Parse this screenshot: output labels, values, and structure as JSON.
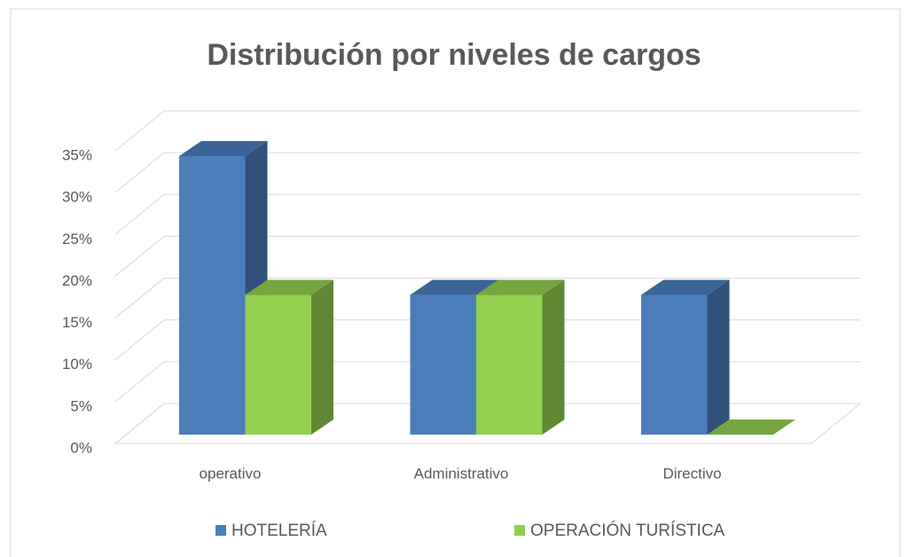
{
  "chart_data": {
    "type": "bar3d",
    "title": "Distribución por niveles de cargos",
    "categories": [
      "operativo",
      "Administrativo",
      "Directivo"
    ],
    "series": [
      {
        "name": "HOTELERÍA",
        "color": "#4a7ebb",
        "values": [
          33.3,
          16.7,
          16.7
        ]
      },
      {
        "name": "OPERACIÓN TURÍSTICA",
        "color": "#92d050",
        "values": [
          16.7,
          16.7,
          0
        ]
      }
    ],
    "ylim": [
      0,
      35
    ],
    "yticks": [
      {
        "value": 0,
        "label": "0%"
      },
      {
        "value": 5,
        "label": "5%"
      },
      {
        "value": 10,
        "label": "10%"
      },
      {
        "value": 15,
        "label": "15%"
      },
      {
        "value": 20,
        "label": "20%"
      },
      {
        "value": 25,
        "label": "25%"
      },
      {
        "value": 30,
        "label": "30%"
      },
      {
        "value": 35,
        "label": "35%"
      }
    ],
    "grid": true,
    "legend": "bottom"
  }
}
